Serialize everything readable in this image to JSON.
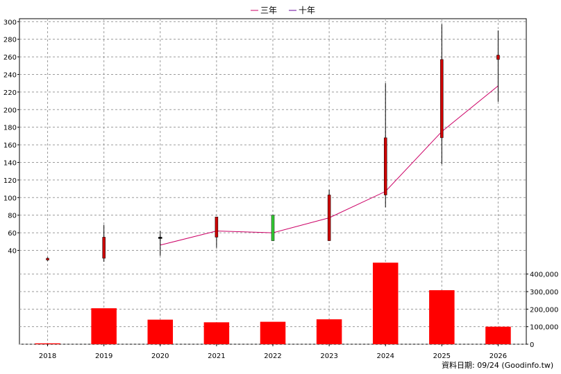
{
  "chart_data": {
    "type": "candlestick",
    "legend": [
      {
        "name": "三年",
        "color": "#cc0066"
      },
      {
        "name": "十年",
        "color": "#660099"
      }
    ],
    "categories": [
      "2018",
      "2019",
      "2020",
      "2021",
      "2022",
      "2023",
      "2024",
      "2025",
      "2026"
    ],
    "price": {
      "ylim": [
        27,
        301
      ],
      "yticks": [
        40,
        60,
        80,
        100,
        120,
        140,
        160,
        180,
        200,
        220,
        240,
        260,
        280,
        300
      ],
      "candles": [
        {
          "open": 29,
          "close": 31,
          "high": 32,
          "low": 28,
          "color": "red"
        },
        {
          "open": 31,
          "close": 55,
          "high": 69,
          "low": 27,
          "color": "red"
        },
        {
          "open": 54,
          "close": 55,
          "high": 62,
          "low": 34,
          "color": "black"
        },
        {
          "open": 55,
          "close": 78,
          "high": 78,
          "low": 43,
          "color": "red"
        },
        {
          "open": 80,
          "close": 51,
          "high": 80,
          "low": 51,
          "color": "green"
        },
        {
          "open": 51,
          "close": 103,
          "high": 109,
          "low": 51,
          "color": "red"
        },
        {
          "open": 103,
          "close": 168,
          "high": 230,
          "low": 89,
          "color": "red"
        },
        {
          "open": 168,
          "close": 257,
          "high": 297,
          "low": 138,
          "color": "red"
        },
        {
          "open": 257,
          "close": 262,
          "high": 290,
          "low": 209,
          "color": "red"
        }
      ],
      "ma3_line": [
        null,
        null,
        46,
        62,
        60,
        77,
        107,
        175,
        227
      ]
    },
    "volume": {
      "ylim": [
        0,
        470000
      ],
      "yticks": [
        0,
        100000,
        200000,
        300000,
        400000
      ],
      "ytick_labels": [
        "0",
        "100,000",
        "200,000",
        "300,000",
        "400,000"
      ],
      "values": [
        5000,
        205000,
        140000,
        125000,
        128000,
        142000,
        465000,
        308000,
        100000
      ],
      "color": "#ff0000"
    }
  },
  "footer": "資料日期: 09/24 (Goodinfo.tw)"
}
